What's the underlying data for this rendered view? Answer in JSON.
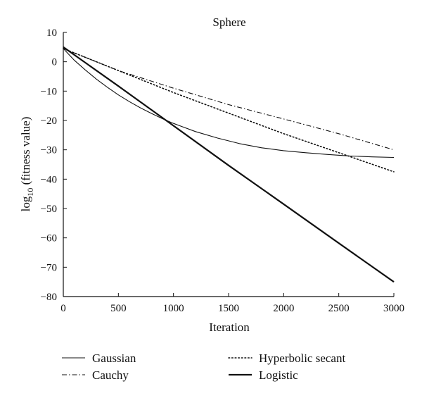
{
  "chart_data": {
    "type": "line",
    "title": "Sphere",
    "xlabel": "Iteration",
    "ylabel_main": "log",
    "ylabel_sub": "10",
    "ylabel_rest": " (fitness value)",
    "xlim": [
      0,
      3000
    ],
    "ylim": [
      -80,
      10
    ],
    "xticks": [
      0,
      500,
      1000,
      1500,
      2000,
      2500,
      3000
    ],
    "xtick_labels": [
      "0",
      "500",
      "1000",
      "1500",
      "2000",
      "2500",
      "3000"
    ],
    "yticks": [
      10,
      0,
      -10,
      -20,
      -30,
      -40,
      -50,
      -60,
      -70,
      -80
    ],
    "ytick_labels": [
      "10",
      "0",
      "−10",
      "−20",
      "−30",
      "−40",
      "−50",
      "−60",
      "−70",
      "−80"
    ],
    "grid": false,
    "legend_position": "bottom",
    "series": [
      {
        "name": "Gaussian",
        "style": "solid-thin",
        "x": [
          0,
          100,
          200,
          300,
          400,
          500,
          600,
          700,
          800,
          900,
          1000,
          1200,
          1400,
          1600,
          1800,
          2000,
          2200,
          2400,
          2600,
          2800,
          3000
        ],
        "y": [
          4.5,
          0.5,
          -2.8,
          -5.9,
          -8.7,
          -11.3,
          -13.6,
          -15.7,
          -17.6,
          -19.4,
          -21.0,
          -23.8,
          -26.0,
          -27.9,
          -29.3,
          -30.3,
          -31.0,
          -31.6,
          -32.1,
          -32.4,
          -32.6
        ]
      },
      {
        "name": "Cauchy",
        "style": "dash-dot",
        "x": [
          0,
          500,
          1000,
          1500,
          2000,
          2500,
          3000
        ],
        "y": [
          4.5,
          -3.0,
          -9.0,
          -14.6,
          -19.5,
          -24.5,
          -30.0
        ]
      },
      {
        "name": "Hyperbolic secant",
        "style": "dotted",
        "x": [
          0,
          500,
          1000,
          1500,
          2000,
          2500,
          3000
        ],
        "y": [
          4.5,
          -3.0,
          -10.5,
          -17.5,
          -24.5,
          -31.0,
          -37.5
        ]
      },
      {
        "name": "Logistic",
        "style": "solid-thick",
        "x": [
          0,
          500,
          1000,
          1500,
          2000,
          2500,
          3000
        ],
        "y": [
          5.0,
          -8.3,
          -21.8,
          -35.3,
          -48.5,
          -61.8,
          -75.0
        ]
      }
    ]
  }
}
